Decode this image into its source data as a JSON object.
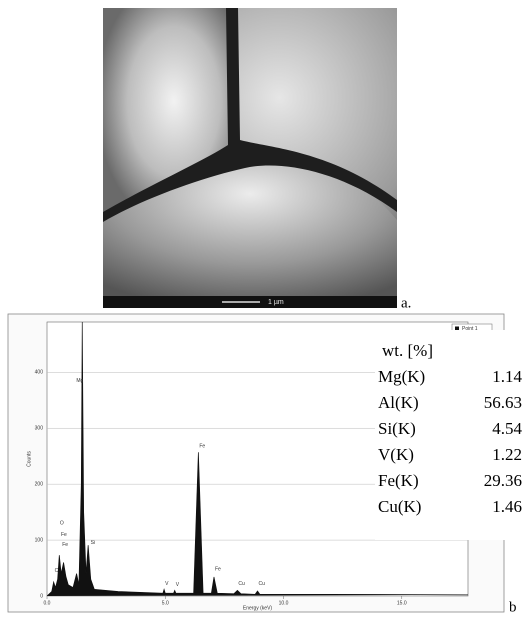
{
  "figure_a": {
    "panel_label": "a.",
    "scale_bar": "1 µm"
  },
  "chart_data": {
    "type": "line",
    "panel_label": "b",
    "x_label": "Energy (keV)",
    "y_label": "Counts",
    "series": [
      {
        "name": "Point 1",
        "color": "#111111",
        "x": [
          0,
          0.2,
          0.28,
          0.36,
          0.45,
          0.52,
          0.6,
          0.7,
          0.8,
          0.9,
          1.1,
          1.25,
          1.35,
          1.45,
          1.49,
          1.55,
          1.65,
          1.74,
          1.85,
          2.0,
          3.0,
          4.9,
          4.95,
          5.0,
          5.35,
          5.4,
          5.45,
          6.2,
          6.4,
          6.6,
          6.95,
          7.06,
          7.2,
          7.9,
          8.05,
          8.2,
          8.8,
          8.9,
          9.0,
          12,
          17.8
        ],
        "values": [
          0,
          8,
          25,
          15,
          30,
          73,
          40,
          60,
          35,
          20,
          15,
          40,
          20,
          200,
          490,
          150,
          40,
          91,
          30,
          12,
          8,
          5,
          12,
          5,
          5,
          10,
          5,
          5,
          257,
          5,
          5,
          34,
          5,
          4,
          10,
          4,
          3,
          9,
          3,
          3,
          2
        ]
      }
    ],
    "annotations": [
      {
        "text": "C",
        "x": 0.28,
        "y": 45
      },
      {
        "text": "O",
        "x": 0.5,
        "y": 130
      },
      {
        "text": "Fe",
        "x": 0.55,
        "y": 110
      },
      {
        "text": "Fe",
        "x": 0.6,
        "y": 92
      },
      {
        "text": "Mg",
        "x": 1.2,
        "y": 385
      },
      {
        "text": "Si",
        "x": 1.8,
        "y": 95
      },
      {
        "text": "V",
        "x": 4.95,
        "y": 22
      },
      {
        "text": "V",
        "x": 5.4,
        "y": 20
      },
      {
        "text": "Fe",
        "x": 6.4,
        "y": 268
      },
      {
        "text": "Fe",
        "x": 7.06,
        "y": 48
      },
      {
        "text": "Cu",
        "x": 8.05,
        "y": 22
      },
      {
        "text": "Cu",
        "x": 8.9,
        "y": 22
      }
    ],
    "xlim": [
      0,
      17.8
    ],
    "ylim": [
      0,
      490
    ],
    "xticks": [
      {
        "value": 0,
        "label": "0.0"
      },
      {
        "value": 5,
        "label": "5.0"
      },
      {
        "value": 10,
        "label": "10.0"
      },
      {
        "value": 15,
        "label": "15.0"
      }
    ],
    "yticks": [
      0,
      100,
      200,
      300,
      400
    ],
    "grid": true
  },
  "table": {
    "header": "wt. [%]",
    "rows": [
      [
        "Mg(K)",
        1.14
      ],
      [
        "Al(K)",
        56.63
      ],
      [
        "Si(K)",
        4.54
      ],
      [
        "V(K)",
        1.22
      ],
      [
        "Fe(K)",
        29.36
      ],
      [
        "Cu(K)",
        1.46
      ]
    ]
  }
}
